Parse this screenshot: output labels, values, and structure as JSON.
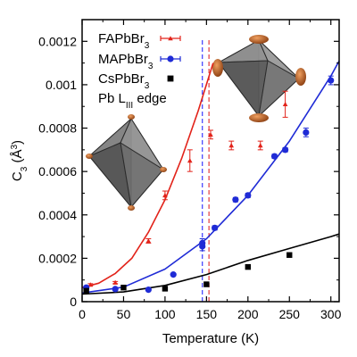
{
  "chart_data": {
    "type": "scatter",
    "xlabel": "Temperature (K)",
    "ylabel": "C",
    "ylabel_sub": "3",
    "ylabel_unit": " (Å",
    "ylabel_sup": "3",
    "ylabel_close": ")",
    "xlim": [
      0,
      310
    ],
    "ylim": [
      0,
      0.0013
    ],
    "x_ticks": [
      0,
      50,
      100,
      150,
      200,
      250,
      300
    ],
    "y_ticks": [
      0,
      0.0002,
      0.0004,
      0.0006,
      0.0008,
      0.001,
      0.0012
    ],
    "y_tick_labels": [
      "0",
      "0.0002",
      "0.0004",
      "0.0006",
      "0.0008",
      "0.001",
      "0.0012"
    ],
    "vlines": [
      {
        "x": 145,
        "color": "#3a3aff"
      },
      {
        "x": 153,
        "color": "#e33b3b"
      }
    ],
    "legend_title": "Pb L",
    "legend_title_sub": "III",
    "legend_title_tail": " edge",
    "series": [
      {
        "name": "FAPbBr",
        "name_sub": "3",
        "color": "#e2231a",
        "marker": "triangle",
        "points": [
          [
            10,
            7.8e-05
          ],
          [
            40,
            8.8e-05
          ],
          [
            80,
            0.00028
          ],
          [
            100,
            0.00049
          ],
          [
            130,
            0.00065
          ],
          [
            155,
            0.00077
          ],
          [
            180,
            0.00072
          ],
          [
            215,
            0.00072
          ],
          [
            245,
            0.00091
          ]
        ],
        "errors": [
          5e-06,
          5e-06,
          1e-05,
          2e-05,
          5e-05,
          2e-05,
          2e-05,
          2e-05,
          6e-05
        ],
        "fit": [
          [
            0,
            6.5e-05
          ],
          [
            20,
            8.5e-05
          ],
          [
            40,
            0.00013
          ],
          [
            60,
            0.0002
          ],
          [
            80,
            0.00032
          ],
          [
            100,
            0.00047
          ],
          [
            120,
            0.00066
          ],
          [
            140,
            0.00088
          ],
          [
            158,
            0.0011
          ]
        ]
      },
      {
        "name": "MAPbBr",
        "name_sub": "3",
        "color": "#1f2bd6",
        "marker": "circle",
        "points": [
          [
            5,
            6.5e-05
          ],
          [
            40,
            5.8e-05
          ],
          [
            80,
            5.5e-05
          ],
          [
            110,
            0.000125
          ],
          [
            145,
            0.000255
          ],
          [
            145,
            0.00027
          ],
          [
            160,
            0.00034
          ],
          [
            185,
            0.00047
          ],
          [
            200,
            0.00049
          ],
          [
            232,
            0.00067
          ],
          [
            245,
            0.0007
          ],
          [
            270,
            0.00078
          ],
          [
            300,
            0.00102
          ]
        ],
        "errors": [
          4e-06,
          4e-06,
          4e-06,
          5e-06,
          2e-05,
          2e-05,
          1e-05,
          1e-05,
          1e-05,
          1e-05,
          1e-05,
          2e-05,
          2e-05
        ],
        "fit": [
          [
            0,
            4e-05
          ],
          [
            50,
            6.7e-05
          ],
          [
            100,
            0.00015
          ],
          [
            150,
            0.00029
          ],
          [
            200,
            0.00049
          ],
          [
            250,
            0.00074
          ],
          [
            300,
            0.00104
          ],
          [
            310,
            0.00111
          ]
        ]
      },
      {
        "name": "CsPbBr",
        "name_sub": "3",
        "color": "#000000",
        "marker": "square",
        "points": [
          [
            5,
            5e-05
          ],
          [
            50,
            6.5e-05
          ],
          [
            100,
            6e-05
          ],
          [
            150,
            8e-05
          ],
          [
            200,
            0.00016
          ],
          [
            250,
            0.000215
          ]
        ],
        "fit": [
          [
            0,
            3.5e-05
          ],
          [
            50,
            4.5e-05
          ],
          [
            100,
            7.5e-05
          ],
          [
            150,
            0.000125
          ],
          [
            200,
            0.00019
          ],
          [
            250,
            0.000245
          ],
          [
            300,
            0.0003
          ],
          [
            310,
            0.000312
          ]
        ]
      }
    ]
  }
}
